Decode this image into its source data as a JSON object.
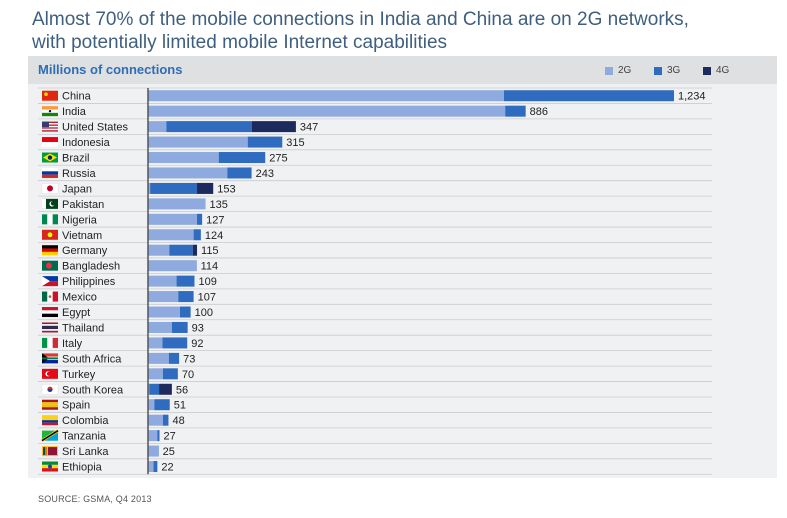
{
  "headline": {
    "line1": "Almost 70% of the mobile connections in India and China are on 2G networks,",
    "line2": "with potentially limited mobile Internet capabilities"
  },
  "source": "SOURCE: GSMA, Q4 2013",
  "colors": {
    "g2": "#8eaadf",
    "g3": "#2f6bbf",
    "g4": "#1c2a5e",
    "axis": "#555555"
  },
  "chart_data": {
    "type": "bar",
    "orientation": "horizontal",
    "stacked": true,
    "title": "Millions of connections",
    "legend": [
      "2G",
      "3G",
      "4G"
    ],
    "legend_position": "top-right",
    "grid": true,
    "xlim": [
      0,
      1234
    ],
    "categories": [
      "China",
      "India",
      "United States",
      "Indonesia",
      "Brazil",
      "Russia",
      "Japan",
      "Pakistan",
      "Nigeria",
      "Vietnam",
      "Germany",
      "Bangladesh",
      "Philippines",
      "Mexico",
      "Egypt",
      "Thailand",
      "Italy",
      "South Africa",
      "Turkey",
      "South Korea",
      "Spain",
      "Colombia",
      "Tanzania",
      "Sri Lanka",
      "Ethiopia"
    ],
    "totals": [
      1234,
      886,
      347,
      315,
      275,
      243,
      153,
      135,
      127,
      124,
      115,
      114,
      109,
      107,
      100,
      93,
      92,
      73,
      70,
      56,
      51,
      48,
      27,
      25,
      22
    ],
    "series": [
      {
        "name": "2G",
        "values": [
          835,
          838,
          43,
          234,
          166,
          186,
          5,
          135,
          115,
          107,
          50,
          113,
          67,
          71,
          75,
          56,
          34,
          49,
          35,
          3,
          15,
          35,
          22,
          24,
          13
        ]
      },
      {
        "name": "3G",
        "values": [
          399,
          48,
          201,
          81,
          109,
          57,
          110,
          0,
          12,
          17,
          55,
          1,
          42,
          36,
          25,
          37,
          58,
          24,
          35,
          23,
          36,
          13,
          5,
          1,
          9
        ]
      },
      {
        "name": "4G",
        "values": [
          0,
          0,
          103,
          0,
          0,
          0,
          38,
          0,
          0,
          0,
          10,
          0,
          0,
          0,
          0,
          0,
          0,
          0,
          0,
          30,
          0,
          0,
          0,
          0,
          0
        ]
      }
    ]
  }
}
